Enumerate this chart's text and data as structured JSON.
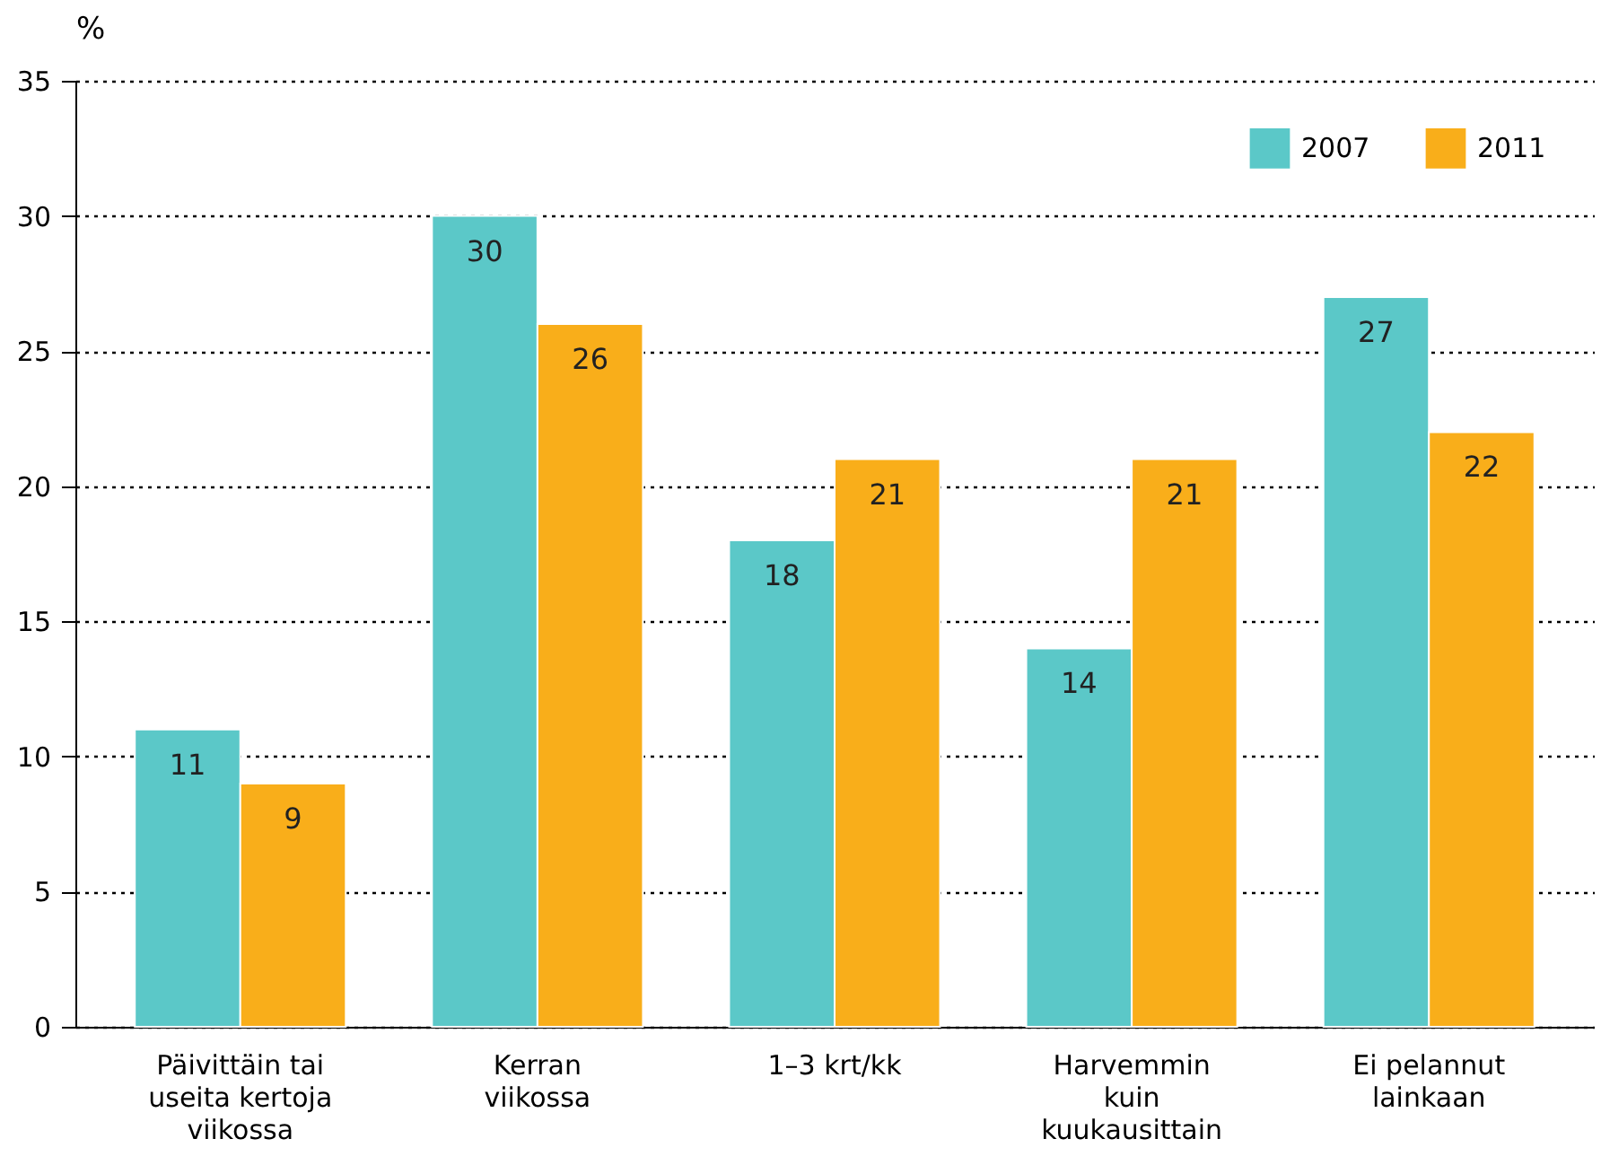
{
  "chart_data": {
    "type": "bar",
    "ylabel": "%",
    "categories": [
      "Päivittäin tai\nuseita kertoja\nviikossa",
      "Kerran\nviikossa",
      "1–3 krt/kk",
      "Harvemmin\nkuin\nkuukausittain",
      "Ei pelannut\nlainkaan"
    ],
    "series": [
      {
        "name": "2007",
        "color": "#5bc8c8",
        "values": [
          11,
          30,
          18,
          14,
          27
        ]
      },
      {
        "name": "2011",
        "color": "#f9ae1a",
        "values": [
          9,
          26,
          21,
          21,
          22
        ]
      }
    ],
    "ylim": [
      0,
      35
    ],
    "yticks": [
      0,
      5,
      10,
      15,
      20,
      25,
      30,
      35
    ],
    "grid": "y",
    "legend": "top right",
    "data_labels": true
  }
}
